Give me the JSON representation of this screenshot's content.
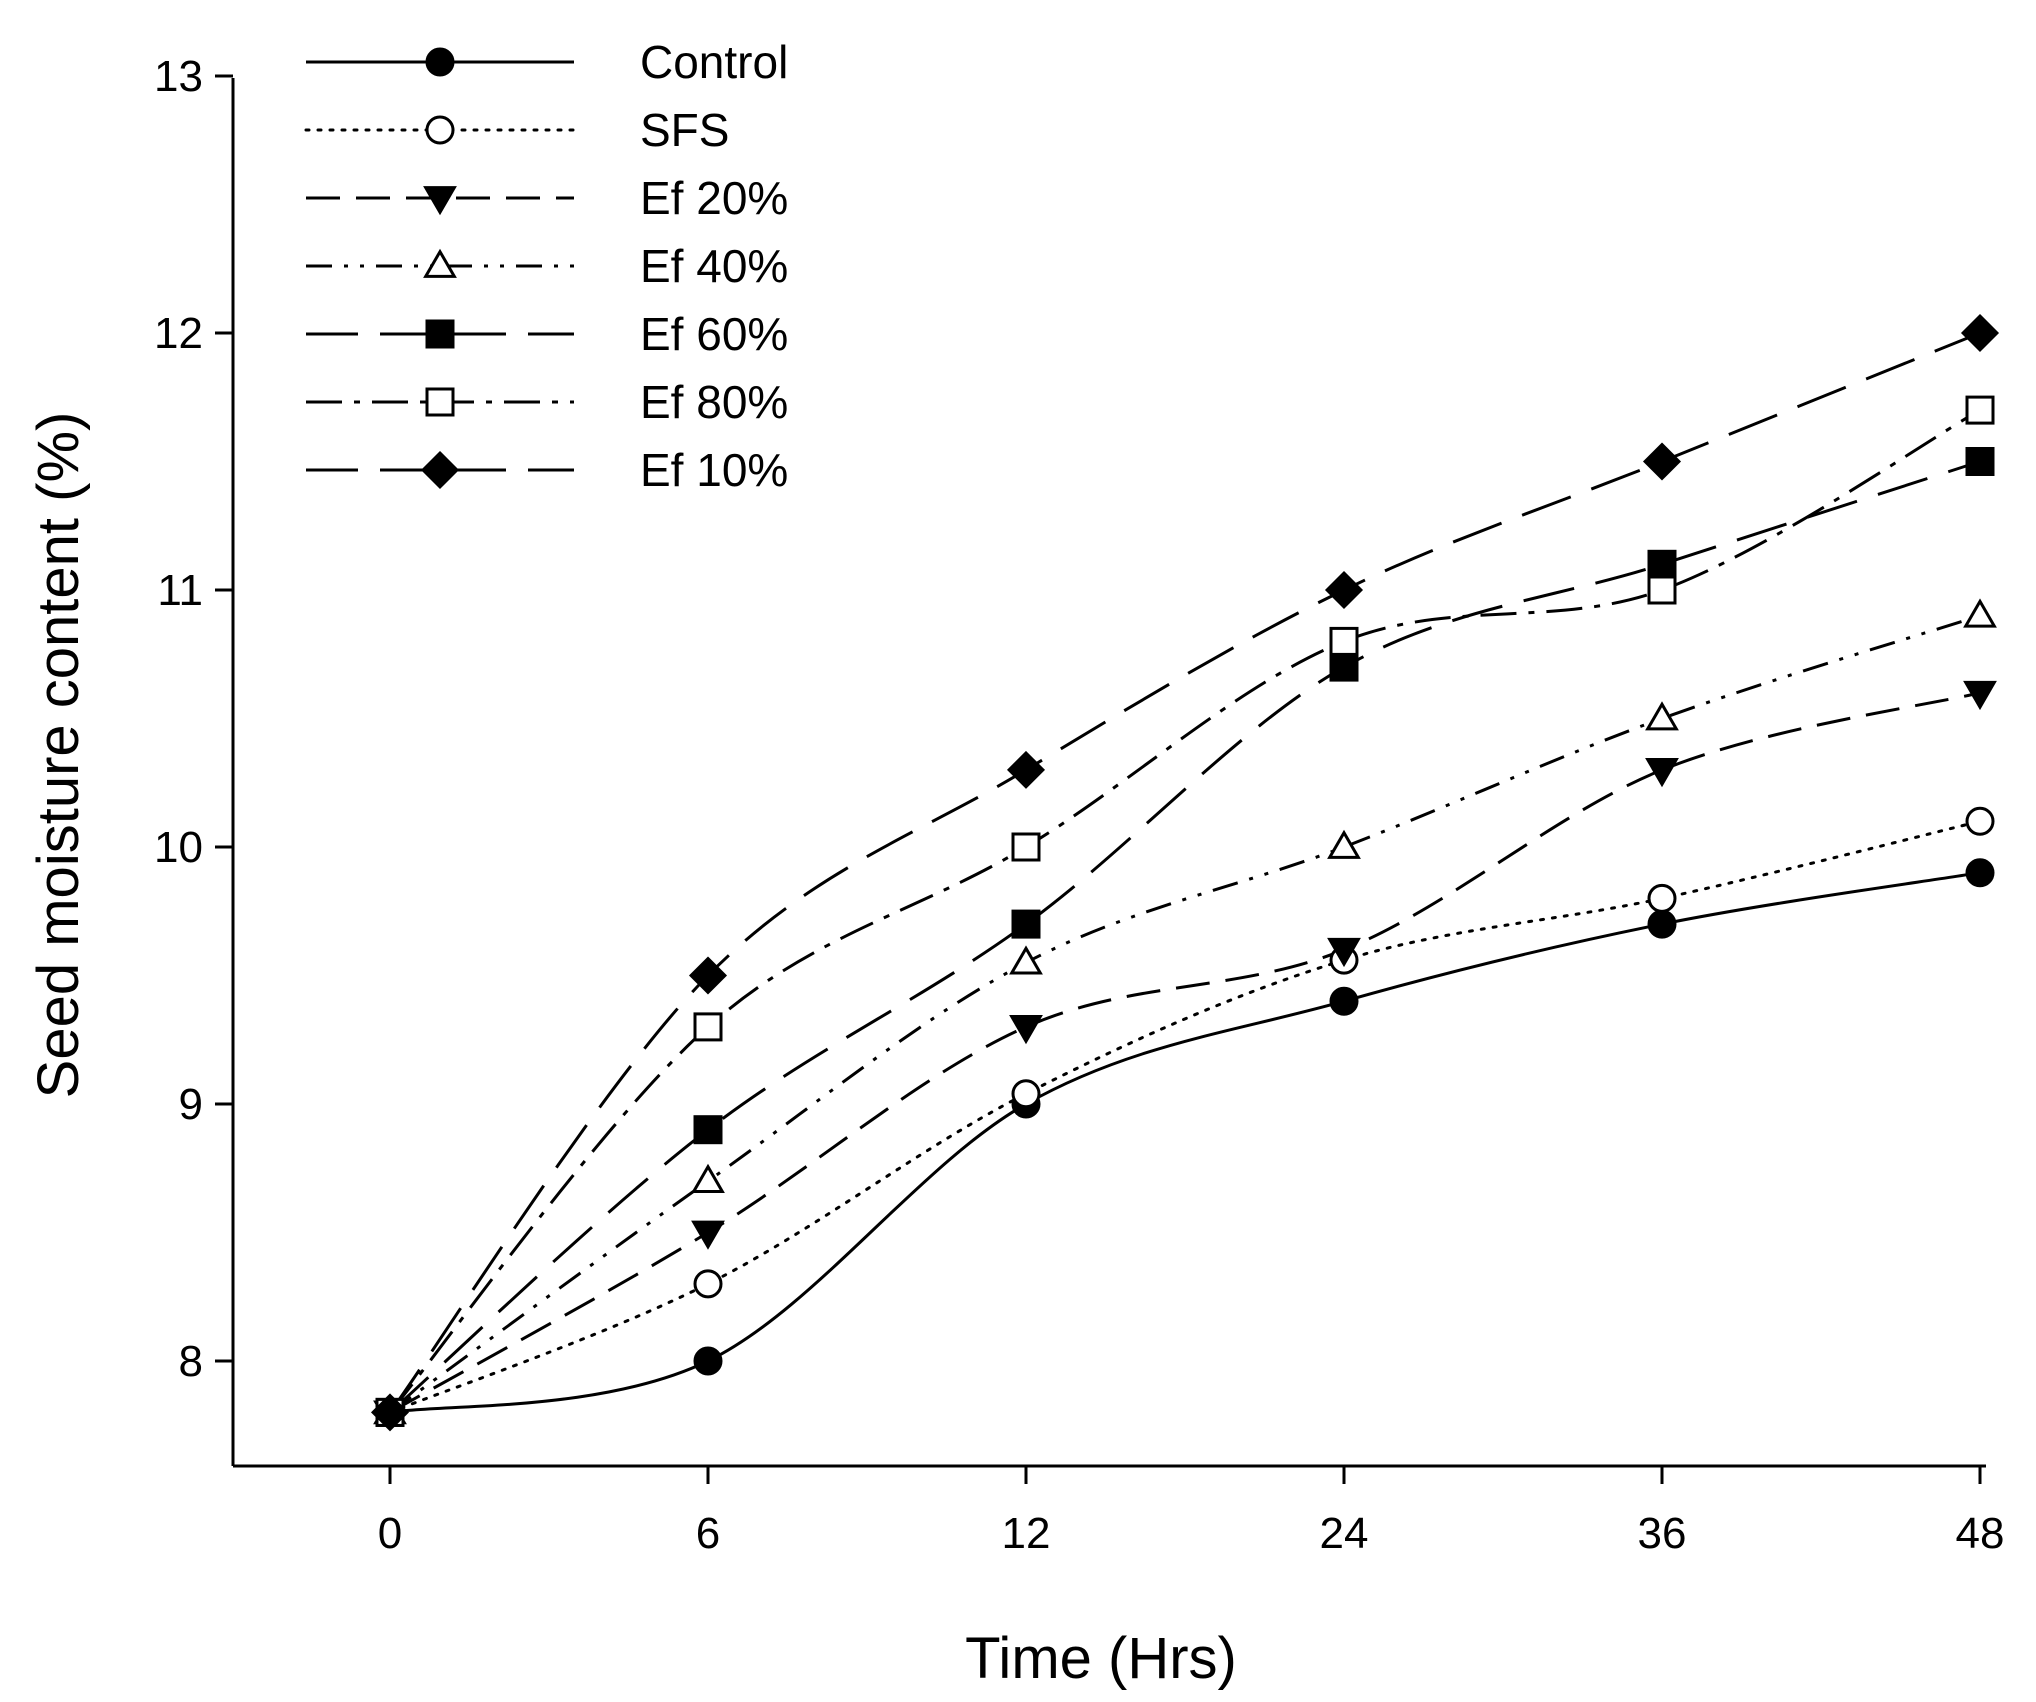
{
  "chart_data": {
    "type": "line",
    "title": "",
    "xlabel": "Time (Hrs)",
    "ylabel": "Seed moisture content (%)",
    "categories": [
      "0",
      "6",
      "12",
      "24",
      "36",
      "48"
    ],
    "ylim": [
      7.6,
      13
    ],
    "yticks": [
      "8",
      "9",
      "10",
      "11",
      "12",
      "13"
    ],
    "ytick_values": [
      8,
      9,
      10,
      11,
      12,
      13
    ],
    "grid": false,
    "legend_position": "top-left",
    "series": [
      {
        "name": "Control",
        "values": [
          7.8,
          8.0,
          9.0,
          9.4,
          9.7,
          9.9
        ],
        "marker": "circle-filled",
        "line": "solid"
      },
      {
        "name": "SFS",
        "values": [
          7.8,
          8.3,
          9.04,
          9.56,
          9.8,
          10.1
        ],
        "marker": "circle-open",
        "line": "dotted"
      },
      {
        "name": "Ef 20%",
        "values": [
          7.8,
          8.5,
          9.3,
          9.6,
          10.3,
          10.6
        ],
        "marker": "triangle-down-filled",
        "line": "dashed"
      },
      {
        "name": "Ef 40%",
        "values": [
          7.8,
          8.7,
          9.55,
          10.0,
          10.5,
          10.9
        ],
        "marker": "triangle-up-open",
        "line": "dash-dot-dot"
      },
      {
        "name": "Ef 60%",
        "values": [
          7.8,
          8.9,
          9.7,
          10.7,
          11.1,
          11.5
        ],
        "marker": "square-filled",
        "line": "long-dash"
      },
      {
        "name": "Ef 80%",
        "values": [
          7.8,
          9.3,
          10.0,
          10.8,
          11.0,
          11.7
        ],
        "marker": "square-open",
        "line": "dash-dot"
      },
      {
        "name": "Ef 10%",
        "values": [
          7.8,
          9.5,
          10.3,
          11.0,
          11.5,
          12.0
        ],
        "marker": "diamond-filled",
        "line": "long-dash"
      }
    ]
  }
}
